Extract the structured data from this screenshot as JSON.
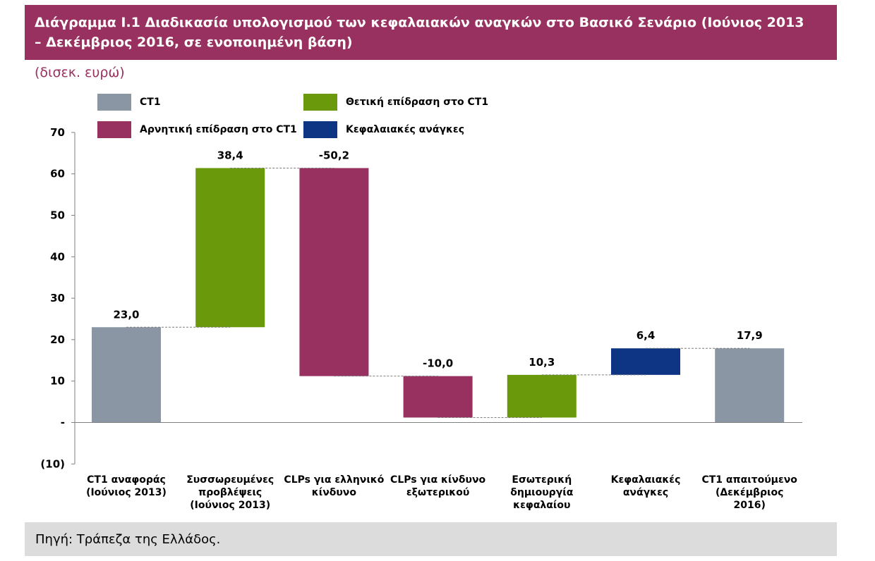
{
  "title": {
    "line1": "Διάγραμμα Ι.1 Διαδικασία υπολογισμού των κεφαλαιακών αναγκών στο Βασικό Σενάριο (Ιούνιος 2013",
    "line2": "– Δεκέμβριος 2016, σε ενοποιημένη βάση)"
  },
  "unit_label": "(δισεκ. ευρώ)",
  "source": "Πηγή: Τράπεζα της Ελλάδος.",
  "legend": [
    {
      "label": "CT1",
      "color": "#8a96a3"
    },
    {
      "label": "Θετική επίδραση στο CT1",
      "color": "#6a9a0c"
    },
    {
      "label": "Αρνητική επίδραση στο CT1",
      "color": "#98315f"
    },
    {
      "label": "Κεφαλαιακές ανάγκες",
      "color": "#0d3584"
    }
  ],
  "chart_data": {
    "type": "waterfall",
    "title": "Διάγραμμα Ι.1 Διαδικασία υπολογισμού των κεφαλαιακών αναγκών στο Βασικό Σενάριο (Ιούνιος 2013 – Δεκέμβριος 2016, σε ενοποιημένη βάση)",
    "ylabel": "(δισεκ. ευρώ)",
    "ylim": [
      -10,
      70
    ],
    "yticks": [
      -10,
      0,
      10,
      20,
      30,
      40,
      50,
      60,
      70
    ],
    "ytick_labels": [
      "(10)",
      "-",
      "10",
      "20",
      "30",
      "40",
      "50",
      "60",
      "70"
    ],
    "categories": [
      [
        "CT1 αναφοράς",
        "(Ιούνιος 2013)"
      ],
      [
        "Συσσωρευμένες",
        "προβλέψεις",
        "(Ιούνιος 2013)"
      ],
      [
        "CLPs για ελληνικό",
        "κίνδυνο"
      ],
      [
        "CLPs για κίνδυνο",
        "εξωτερικού"
      ],
      [
        "Εσωτερική",
        "δημιουργία",
        "κεφαλαίου"
      ],
      [
        "Κεφαλαιακές",
        "ανάγκες"
      ],
      [
        "CT1 απαιτούμενο",
        "(Δεκέμβριος",
        "2016)"
      ]
    ],
    "bars": [
      {
        "kind": "CT1",
        "base": 0,
        "top": 23.0,
        "label": "23,0"
      },
      {
        "kind": "positive",
        "base": 23.0,
        "top": 61.4,
        "label": "38,4"
      },
      {
        "kind": "negative",
        "base": 11.2,
        "top": 61.4,
        "label": "-50,2"
      },
      {
        "kind": "negative",
        "base": 1.2,
        "top": 11.2,
        "label": "-10,0"
      },
      {
        "kind": "positive",
        "base": 1.2,
        "top": 11.5,
        "label": "10,3"
      },
      {
        "kind": "capital_needs",
        "base": 11.5,
        "top": 17.9,
        "label": "6,4"
      },
      {
        "kind": "CT1",
        "base": 0,
        "top": 17.9,
        "label": "17,9"
      }
    ],
    "colors": {
      "CT1": "#8a96a3",
      "positive": "#6a9a0c",
      "negative": "#98315f",
      "capital_needs": "#0d3584"
    },
    "grid": false
  }
}
